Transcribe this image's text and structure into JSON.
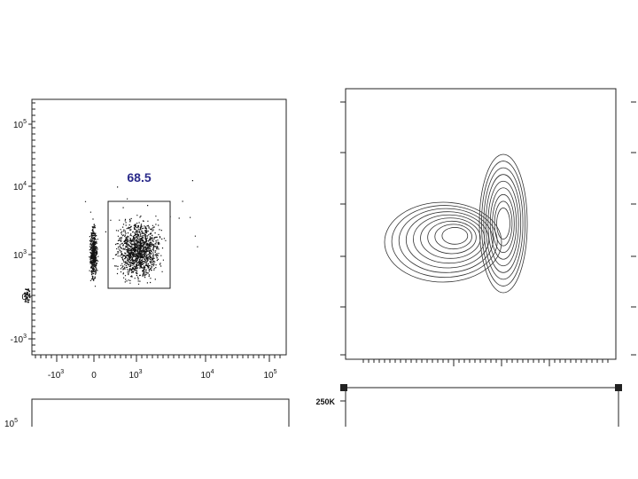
{
  "panel_a": {
    "gate_label": "68.5",
    "yticks": [
      {
        "base": "10",
        "exp": "5"
      },
      {
        "base": "10",
        "exp": "4"
      },
      {
        "base": "10",
        "exp": "3"
      },
      {
        "base": "0"
      },
      {
        "base": "-10",
        "exp": "3"
      }
    ],
    "xticks": [
      {
        "base": "-10",
        "exp": "3"
      },
      {
        "base": "0"
      },
      {
        "base": "10",
        "exp": "3"
      },
      {
        "base": "10",
        "exp": "4"
      },
      {
        "base": "10",
        "exp": "5"
      }
    ]
  },
  "panel_c": {
    "ytick": "250K"
  },
  "panel_d": {
    "ytick": {
      "base": "10",
      "exp": "5"
    }
  }
}
